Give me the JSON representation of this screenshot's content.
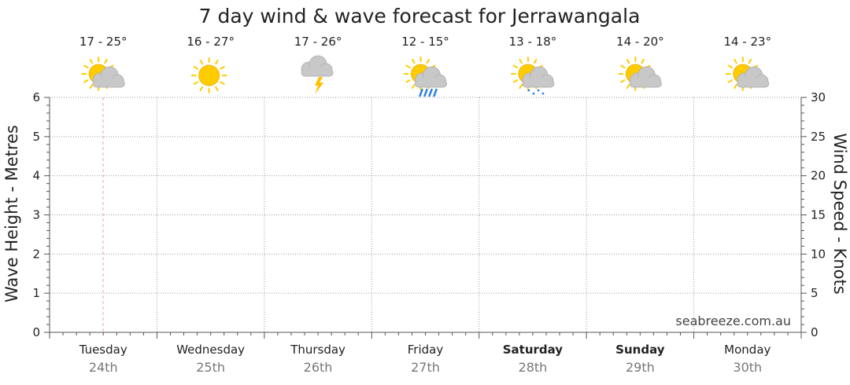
{
  "chart_data": {
    "type": "line",
    "title": "7 day wind & wave forecast for Jerrawangala",
    "ylabel_left": "Wave Height - Metres",
    "ylabel_right": "Wind Speed - Knots",
    "ylim_left": [
      0,
      6
    ],
    "ylim_right": [
      0,
      30
    ],
    "yticks_left": [
      "0",
      "1",
      "2",
      "3",
      "4",
      "5",
      "6"
    ],
    "yticks_right": [
      "0",
      "5",
      "10",
      "15",
      "20",
      "25",
      "30"
    ],
    "grid": true,
    "watermark": "seabreeze.com.au",
    "days": [
      {
        "day": "Tuesday",
        "date": "24th",
        "temp": "17 - 25°",
        "weather": "partly-cloudy-icon",
        "bold": false
      },
      {
        "day": "Wednesday",
        "date": "25th",
        "temp": "16 - 27°",
        "weather": "sunny-icon",
        "bold": false
      },
      {
        "day": "Thursday",
        "date": "26th",
        "temp": "17 - 26°",
        "weather": "thunderstorm-icon",
        "bold": false
      },
      {
        "day": "Friday",
        "date": "27th",
        "temp": "12 - 15°",
        "weather": "showers-icon",
        "bold": false
      },
      {
        "day": "Saturday",
        "date": "28th",
        "temp": "13 - 18°",
        "weather": "light-showers-icon",
        "bold": true
      },
      {
        "day": "Sunday",
        "date": "29th",
        "temp": "14 - 20°",
        "weather": "partly-cloudy-icon",
        "bold": true
      },
      {
        "day": "Monday",
        "date": "30th",
        "temp": "14 - 23°",
        "weather": "partly-cloudy-icon",
        "bold": false
      }
    ],
    "series": [],
    "colors": {
      "grid": "#9a9a9a",
      "now_marker": "#e8a8a0",
      "sun": "#ffcc00",
      "cloud": "#c8c8c8",
      "rain": "#2f7fe0",
      "bolt": "#ffc000"
    }
  }
}
